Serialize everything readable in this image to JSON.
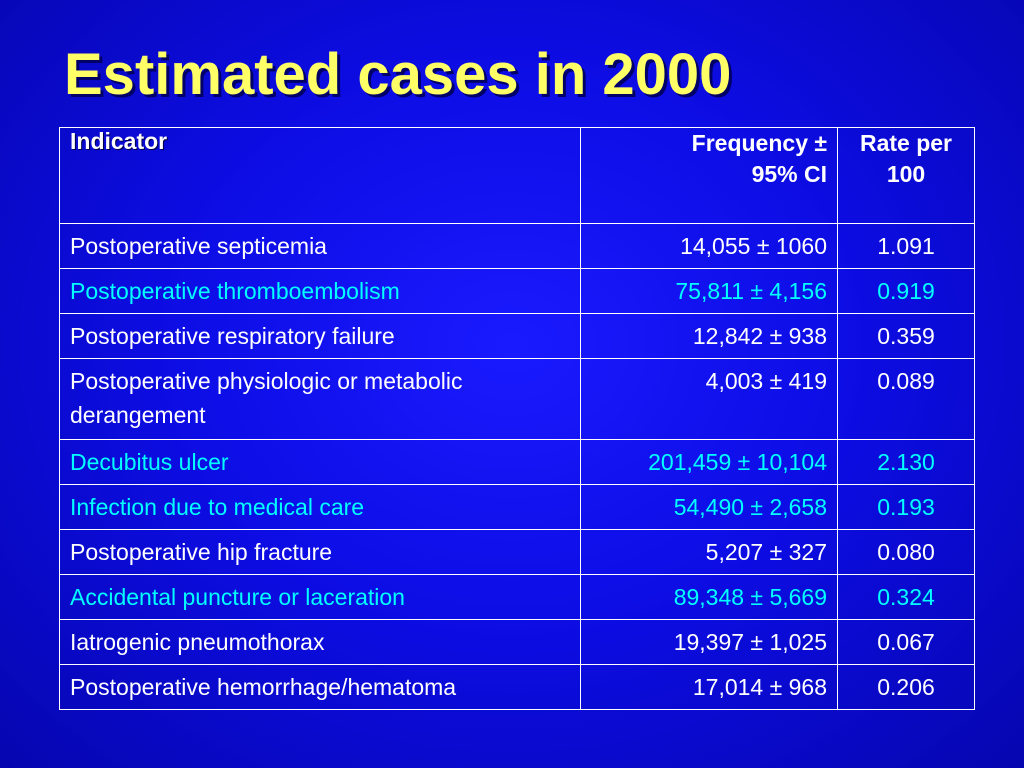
{
  "title": "Estimated cases in 2000",
  "table": {
    "headers": {
      "indicator": "Indicator",
      "frequency_line1": "Frequency ±",
      "frequency_line2": "95% CI",
      "rate_line1": "Rate per",
      "rate_line2": "100"
    },
    "rows": [
      {
        "indicator": "Postoperative septicemia",
        "frequency": "14,055 ± 1060",
        "rate": "1.091",
        "highlight": false
      },
      {
        "indicator": "Postoperative thromboembolism",
        "frequency": "75,811 ± 4,156",
        "rate": "0.919",
        "highlight": true
      },
      {
        "indicator": "Postoperative respiratory failure",
        "frequency": "12,842 ± 938",
        "rate": "0.359",
        "highlight": false
      },
      {
        "indicator": "Postoperative physiologic or metabolic derangement",
        "frequency": "4,003 ± 419",
        "rate": "0.089",
        "highlight": false
      },
      {
        "indicator": "Decubitus ulcer",
        "frequency": "201,459 ± 10,104",
        "rate": "2.130",
        "highlight": true
      },
      {
        "indicator": "Infection due to medical care",
        "frequency": "54,490 ± 2,658",
        "rate": "0.193",
        "highlight": true
      },
      {
        "indicator": "Postoperative hip fracture",
        "frequency": "5,207 ± 327",
        "rate": "0.080",
        "highlight": false
      },
      {
        "indicator": "Accidental puncture or laceration",
        "frequency": "89,348 ± 5,669",
        "rate": "0.324",
        "highlight": true
      },
      {
        "indicator": "Iatrogenic pneumothorax",
        "frequency": "19,397 ± 1,025",
        "rate": "0.067",
        "highlight": false
      },
      {
        "indicator": "Postoperative hemorrhage/hematoma",
        "frequency": "17,014 ± 968",
        "rate": "0.206",
        "highlight": false
      }
    ]
  },
  "colors": {
    "background": "#0d0de6",
    "title": "#ffff66",
    "text": "#ffffff",
    "highlight_text": "#00ffff",
    "border": "#ffffff"
  }
}
